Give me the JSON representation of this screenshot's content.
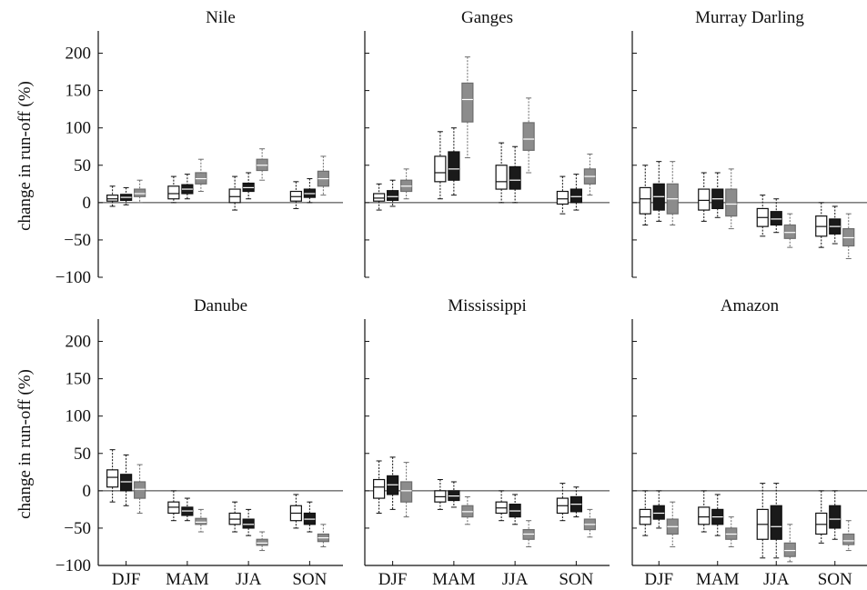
{
  "chart_data": {
    "type": "box",
    "ylabel": "change in run-off (%)",
    "ylim": [
      -100,
      225
    ],
    "yticks": [
      -100,
      -50,
      0,
      50,
      100,
      150,
      200
    ],
    "categories": [
      "DJF",
      "MAM",
      "JJA",
      "SON"
    ],
    "series_colors": [
      "#ffffff",
      "#1a1a1a",
      "#8c8c8c"
    ],
    "panels": [
      {
        "title": "Nile",
        "boxes": [
          [
            [
              -5,
              2,
              5,
              10,
              22
            ],
            [
              -3,
              3,
              7,
              11,
              20
            ],
            [
              0,
              8,
              12,
              18,
              30
            ]
          ],
          [
            [
              0,
              5,
              12,
              22,
              35
            ],
            [
              5,
              12,
              18,
              24,
              38
            ],
            [
              15,
              25,
              32,
              40,
              58
            ]
          ],
          [
            [
              -10,
              0,
              8,
              18,
              35
            ],
            [
              5,
              15,
              20,
              26,
              40
            ],
            [
              30,
              43,
              50,
              58,
              72
            ]
          ],
          [
            [
              -8,
              2,
              8,
              15,
              28
            ],
            [
              0,
              7,
              12,
              18,
              32
            ],
            [
              10,
              22,
              32,
              42,
              62
            ]
          ]
        ]
      },
      {
        "title": "Ganges",
        "boxes": [
          [
            [
              -10,
              2,
              6,
              12,
              25
            ],
            [
              -5,
              3,
              8,
              16,
              30
            ],
            [
              5,
              15,
              22,
              30,
              45
            ]
          ],
          [
            [
              5,
              28,
              40,
              62,
              95
            ],
            [
              10,
              30,
              45,
              68,
              100
            ],
            [
              60,
              108,
              138,
              160,
              195
            ]
          ],
          [
            [
              0,
              18,
              28,
              50,
              80
            ],
            [
              0,
              18,
              30,
              48,
              75
            ],
            [
              40,
              70,
              85,
              107,
              140
            ]
          ],
          [
            [
              -15,
              -2,
              5,
              15,
              35
            ],
            [
              -10,
              0,
              8,
              18,
              38
            ],
            [
              10,
              25,
              35,
              45,
              65
            ]
          ]
        ]
      },
      {
        "title": "Murray Darling",
        "boxes": [
          [
            [
              -30,
              -15,
              5,
              20,
              50
            ],
            [
              -25,
              -10,
              8,
              25,
              55
            ],
            [
              -30,
              -15,
              5,
              25,
              55
            ]
          ],
          [
            [
              -25,
              -10,
              3,
              18,
              40
            ],
            [
              -20,
              -8,
              5,
              18,
              40
            ],
            [
              -35,
              -18,
              -2,
              18,
              45
            ]
          ],
          [
            [
              -45,
              -32,
              -20,
              -8,
              10
            ],
            [
              -40,
              -30,
              -22,
              -12,
              5
            ],
            [
              -60,
              -48,
              -40,
              -30,
              -15
            ]
          ],
          [
            [
              -60,
              -45,
              -32,
              -18,
              0
            ],
            [
              -55,
              -42,
              -32,
              -22,
              -5
            ],
            [
              -75,
              -58,
              -47,
              -35,
              -15
            ]
          ]
        ]
      },
      {
        "title": "Danube",
        "boxes": [
          [
            [
              -15,
              5,
              18,
              28,
              55
            ],
            [
              -20,
              0,
              12,
              22,
              48
            ],
            [
              -30,
              -10,
              2,
              12,
              35
            ]
          ],
          [
            [
              -40,
              -30,
              -22,
              -15,
              0
            ],
            [
              -40,
              -33,
              -27,
              -22,
              -10
            ],
            [
              -55,
              -45,
              -42,
              -37,
              -25
            ]
          ],
          [
            [
              -55,
              -45,
              -38,
              -30,
              -15
            ],
            [
              -60,
              -50,
              -45,
              -38,
              -25
            ],
            [
              -80,
              -73,
              -70,
              -65,
              -55
            ]
          ],
          [
            [
              -50,
              -40,
              -30,
              -20,
              -5
            ],
            [
              -55,
              -45,
              -38,
              -30,
              -15
            ],
            [
              -75,
              -68,
              -63,
              -58,
              -45
            ]
          ]
        ]
      },
      {
        "title": "Mississippi",
        "boxes": [
          [
            [
              -30,
              -10,
              5,
              15,
              40
            ],
            [
              -25,
              -5,
              8,
              20,
              45
            ],
            [
              -35,
              -15,
              0,
              12,
              38
            ]
          ],
          [
            [
              -25,
              -15,
              -8,
              0,
              15
            ],
            [
              -22,
              -13,
              -7,
              0,
              12
            ],
            [
              -45,
              -35,
              -28,
              -20,
              -8
            ]
          ],
          [
            [
              -40,
              -30,
              -23,
              -15,
              0
            ],
            [
              -45,
              -35,
              -27,
              -18,
              -5
            ],
            [
              -75,
              -65,
              -58,
              -52,
              -40
            ]
          ],
          [
            [
              -40,
              -30,
              -20,
              -10,
              10
            ],
            [
              -35,
              -28,
              -18,
              -8,
              5
            ],
            [
              -62,
              -52,
              -45,
              -38,
              -25
            ]
          ]
        ]
      },
      {
        "title": "Amazon",
        "boxes": [
          [
            [
              -60,
              -45,
              -35,
              -25,
              0
            ],
            [
              -50,
              -38,
              -30,
              -20,
              0
            ],
            [
              -75,
              -58,
              -48,
              -38,
              -15
            ]
          ],
          [
            [
              -55,
              -45,
              -35,
              -22,
              0
            ],
            [
              -60,
              -45,
              -35,
              -25,
              -5
            ],
            [
              -75,
              -65,
              -58,
              -50,
              -35
            ]
          ],
          [
            [
              -90,
              -65,
              -45,
              -25,
              10
            ],
            [
              -90,
              -65,
              -48,
              -20,
              10
            ],
            [
              -95,
              -88,
              -80,
              -70,
              -45
            ]
          ],
          [
            [
              -70,
              -58,
              -45,
              -30,
              0
            ],
            [
              -65,
              -50,
              -38,
              -20,
              0
            ],
            [
              -80,
              -72,
              -67,
              -58,
              -40
            ]
          ]
        ]
      }
    ]
  }
}
